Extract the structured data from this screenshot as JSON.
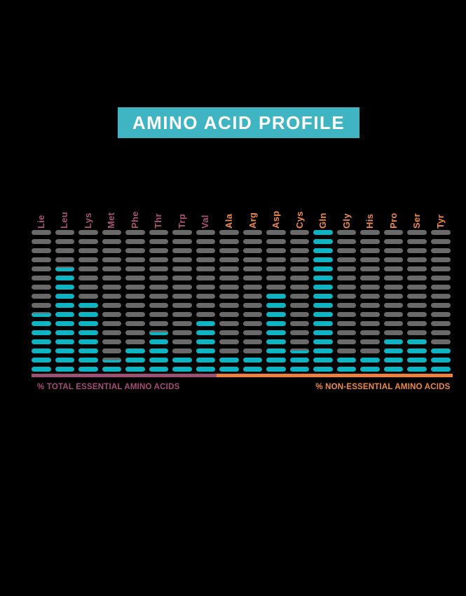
{
  "page": {
    "background": "#000000"
  },
  "banner": {
    "title": "AMINO ACID PROFILE",
    "bg_color": "#3fb5c4",
    "text_color": "#ffffff"
  },
  "chart_data": {
    "type": "bar",
    "subtype": "segmented-dash-columns",
    "title": "AMINO ACID PROFILE",
    "max_segments": 16,
    "segment_filled_color": "#0cb5c3",
    "segment_empty_color": "#696969",
    "categories": [
      "Lie",
      "Leu",
      "Lys",
      "Met",
      "Phe",
      "Thr",
      "Trp",
      "Val",
      "Ala",
      "Arg",
      "Asp",
      "Cys",
      "Gln",
      "Gly",
      "His",
      "Pro",
      "Ser",
      "Tyr"
    ],
    "groups": [
      "essential",
      "essential",
      "essential",
      "essential",
      "essential",
      "essential",
      "essential",
      "essential",
      "nonessential",
      "nonessential",
      "nonessential",
      "nonessential",
      "nonessential",
      "nonessential",
      "nonessential",
      "nonessential",
      "nonessential",
      "nonessential"
    ],
    "values_segments": [
      6.7,
      11.7,
      8,
      1.5,
      3,
      4.6,
      2,
      6,
      2,
      2,
      9,
      2.6,
      16,
      2,
      2,
      4,
      4,
      3
    ],
    "group_styles": {
      "essential": {
        "label_color": "#a85379"
      },
      "nonessential": {
        "label_color": "#f08a4e"
      }
    },
    "legend_position": "bottom",
    "grid": false
  },
  "legend": {
    "essential": {
      "label": "% TOTAL ESSENTIAL AMINO ACIDS",
      "line_color": "#9b5173",
      "text_color": "#a54d76"
    },
    "nonessential": {
      "label": "% NON-ESSENTIAL AMINO ACIDS",
      "line_color": "#ef813e",
      "text_color": "#f08a44"
    }
  }
}
